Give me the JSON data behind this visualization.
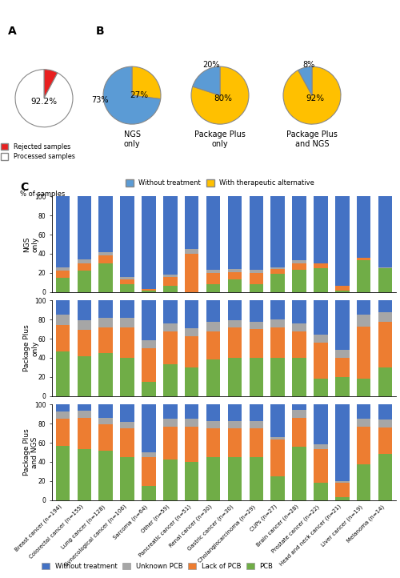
{
  "pie_A": {
    "processed": 92.2,
    "rejected": 7.8
  },
  "pie_B_NGS": {
    "without": 73,
    "with": 27
  },
  "pie_B_PkgPlus": {
    "without": 20,
    "with": 80
  },
  "pie_B_PkgPlusNGS": {
    "without": 8,
    "with": 92
  },
  "colors": {
    "rejected": "#e82020",
    "processed": "#ffffff",
    "without_treatment_pie": "#5b9bd5",
    "with_alternative_pie": "#ffc000",
    "without_treatment_bar": "#4472c4",
    "unknown_pcb": "#a6a6a6",
    "lack_pcb": "#ed7d31",
    "pcb": "#70ad47"
  },
  "categories": [
    "Breast cancer\n(n=194)",
    "Colorectal cancer\n(n=155)",
    "Lung cancer\n(n=128)",
    "Gynecological cancer\n(n=106)",
    "Sarcoma\n(n=64)",
    "Other\n(n=59)",
    "Pancreatic cancer\n(n=51)",
    "Renal cancer\n(n=30)",
    "Gastric cancer\n(n=30)",
    "Cholangiocarcinoma\n(n=29)",
    "CUPs\n(n=27)",
    "Brain cancer\n(n=28)",
    "Prostate cancer\n(n=22)",
    "Head and neck cancer\n(n=21)",
    "Liver cancer\n(n=19)",
    "Melanoma\n(n=14)"
  ],
  "ngs_only": {
    "pcb": [
      15,
      22,
      30,
      8,
      1,
      6,
      0,
      8,
      13,
      8,
      19,
      23,
      25,
      1,
      33,
      25
    ],
    "lack_pcb": [
      7,
      8,
      8,
      5,
      2,
      10,
      40,
      12,
      8,
      12,
      5,
      7,
      5,
      5,
      3,
      0
    ],
    "unknown_pcb": [
      4,
      4,
      4,
      3,
      0,
      2,
      5,
      3,
      3,
      3,
      2,
      3,
      0,
      0,
      0,
      1
    ],
    "without_treatment": [
      74,
      66,
      58,
      84,
      97,
      82,
      55,
      77,
      76,
      77,
      74,
      67,
      70,
      94,
      64,
      74
    ]
  },
  "pkg_plus_only": {
    "pcb": [
      47,
      42,
      45,
      40,
      15,
      33,
      30,
      38,
      40,
      40,
      40,
      40,
      18,
      20,
      18,
      30
    ],
    "lack_pcb": [
      27,
      27,
      27,
      32,
      35,
      35,
      33,
      30,
      32,
      30,
      32,
      28,
      38,
      20,
      55,
      48
    ],
    "unknown_pcb": [
      11,
      10,
      10,
      10,
      8,
      8,
      8,
      10,
      7,
      8,
      8,
      8,
      8,
      8,
      12,
      10
    ],
    "without_treatment": [
      15,
      21,
      18,
      18,
      42,
      24,
      29,
      22,
      21,
      22,
      20,
      24,
      36,
      52,
      15,
      12
    ]
  },
  "pkg_plus_ngs": {
    "pcb": [
      57,
      53,
      52,
      45,
      15,
      42,
      40,
      45,
      45,
      45,
      25,
      52,
      18,
      3,
      37,
      48
    ],
    "lack_pcb": [
      28,
      33,
      27,
      30,
      30,
      35,
      37,
      30,
      30,
      30,
      38,
      28,
      35,
      15,
      40,
      28
    ],
    "unknown_pcb": [
      8,
      8,
      7,
      7,
      5,
      8,
      8,
      8,
      8,
      8,
      3,
      8,
      5,
      2,
      8,
      8
    ],
    "without_treatment": [
      7,
      6,
      14,
      18,
      50,
      15,
      15,
      17,
      17,
      17,
      34,
      5,
      42,
      80,
      15,
      16
    ]
  }
}
